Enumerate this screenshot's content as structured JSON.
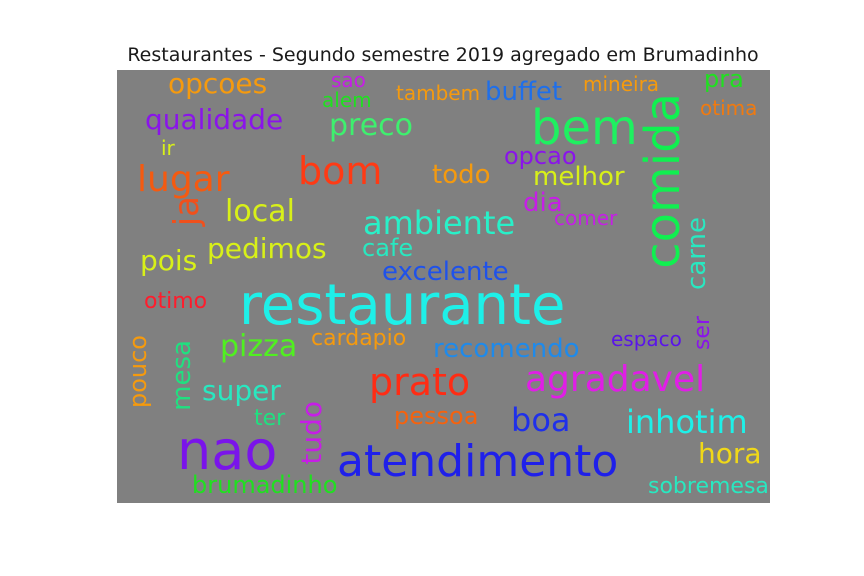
{
  "title": "Restaurantes - Segundo semestre 2019 agregado em Brumadinho",
  "words": [
    {
      "text": "opcoes",
      "color": "#f59a0e",
      "vertical": false
    },
    {
      "text": "sao",
      "color": "#c61ee6",
      "vertical": false
    },
    {
      "text": "alem",
      "color": "#20e020",
      "vertical": false
    },
    {
      "text": "tambem",
      "color": "#f59a0e",
      "vertical": false
    },
    {
      "text": "buffet",
      "color": "#1f6fea",
      "vertical": false
    },
    {
      "text": "mineira",
      "color": "#f59a0e",
      "vertical": false
    },
    {
      "text": "pra",
      "color": "#20e020",
      "vertical": false
    },
    {
      "text": "otima",
      "color": "#f07a10",
      "vertical": false
    },
    {
      "text": "qualidade",
      "color": "#8a14ea",
      "vertical": false
    },
    {
      "text": "preco",
      "color": "#3ef06e",
      "vertical": false
    },
    {
      "text": "bem",
      "color": "#1ef060",
      "vertical": false
    },
    {
      "text": "comida",
      "color": "#10f050",
      "vertical": true
    },
    {
      "text": "ir",
      "color": "#d8f018",
      "vertical": false
    },
    {
      "text": "opcao",
      "color": "#8a14ea",
      "vertical": false
    },
    {
      "text": "lugar",
      "color": "#f55a10",
      "vertical": false
    },
    {
      "text": "bom",
      "color": "#ff3a14",
      "vertical": false
    },
    {
      "text": "todo",
      "color": "#f59a0e",
      "vertical": false
    },
    {
      "text": "melhor",
      "color": "#d8f018",
      "vertical": false
    },
    {
      "text": "ja",
      "color": "#f0501c",
      "vertical": true
    },
    {
      "text": "local",
      "color": "#d8f018",
      "vertical": false
    },
    {
      "text": "ambiente",
      "color": "#28f0c8",
      "vertical": false
    },
    {
      "text": "dia",
      "color": "#c61ee6",
      "vertical": false
    },
    {
      "text": "comer",
      "color": "#c61ee6",
      "vertical": false
    },
    {
      "text": "carne",
      "color": "#28e8c0",
      "vertical": true
    },
    {
      "text": "pedimos",
      "color": "#d8f018",
      "vertical": false
    },
    {
      "text": "cafe",
      "color": "#28e8c0",
      "vertical": false
    },
    {
      "text": "pois",
      "color": "#d8f018",
      "vertical": false
    },
    {
      "text": "excelente",
      "color": "#1f52ea",
      "vertical": false
    },
    {
      "text": "otimo",
      "color": "#ff1c2c",
      "vertical": false
    },
    {
      "text": "restaurante",
      "color": "#1ef0e8",
      "vertical": false
    },
    {
      "text": "pizza",
      "color": "#50f020",
      "vertical": false
    },
    {
      "text": "cardapio",
      "color": "#f59a0e",
      "vertical": false
    },
    {
      "text": "recomendo",
      "color": "#1f8aea",
      "vertical": false
    },
    {
      "text": "espaco",
      "color": "#5a14ea",
      "vertical": false
    },
    {
      "text": "ser",
      "color": "#8a14ea",
      "vertical": true
    },
    {
      "text": "pouco",
      "color": "#f59a0e",
      "vertical": true
    },
    {
      "text": "mesa",
      "color": "#20e080",
      "vertical": true
    },
    {
      "text": "prato",
      "color": "#ff2c14",
      "vertical": false
    },
    {
      "text": "agradavel",
      "color": "#e01ee6",
      "vertical": false
    },
    {
      "text": "super",
      "color": "#28e8c0",
      "vertical": false
    },
    {
      "text": "ter",
      "color": "#20e080",
      "vertical": false
    },
    {
      "text": "tudo",
      "color": "#c61ee6",
      "vertical": true
    },
    {
      "text": "pessoa",
      "color": "#f5620e",
      "vertical": false
    },
    {
      "text": "boa",
      "color": "#1f30ea",
      "vertical": false
    },
    {
      "text": "inhotim",
      "color": "#1ef0e8",
      "vertical": false
    },
    {
      "text": "nao",
      "color": "#7a14ea",
      "vertical": false
    },
    {
      "text": "atendimento",
      "color": "#1f20ea",
      "vertical": false
    },
    {
      "text": "hora",
      "color": "#f0d818",
      "vertical": false
    },
    {
      "text": "brumadinho",
      "color": "#20e020",
      "vertical": false
    },
    {
      "text": "sobremesa",
      "color": "#28e8c0",
      "vertical": false
    }
  ]
}
